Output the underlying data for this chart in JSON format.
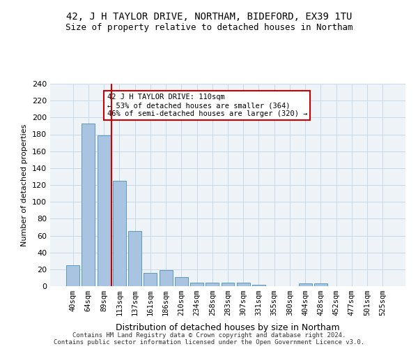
{
  "title": "42, J H TAYLOR DRIVE, NORTHAM, BIDEFORD, EX39 1TU",
  "subtitle": "Size of property relative to detached houses in Northam",
  "xlabel": "Distribution of detached houses by size in Northam",
  "ylabel": "Number of detached properties",
  "categories": [
    "40sqm",
    "64sqm",
    "89sqm",
    "113sqm",
    "137sqm",
    "161sqm",
    "186sqm",
    "210sqm",
    "234sqm",
    "258sqm",
    "283sqm",
    "307sqm",
    "331sqm",
    "355sqm",
    "380sqm",
    "404sqm",
    "428sqm",
    "452sqm",
    "477sqm",
    "501sqm",
    "525sqm"
  ],
  "values": [
    25,
    193,
    179,
    125,
    65,
    16,
    19,
    11,
    4,
    4,
    4,
    4,
    2,
    0,
    0,
    3,
    3,
    0,
    0,
    0,
    0
  ],
  "bar_color": "#a8c4e0",
  "bar_edge_color": "#5a9abf",
  "vline_x": 2.5,
  "vline_color": "#cc0000",
  "annotation_text": "42 J H TAYLOR DRIVE: 110sqm\n← 53% of detached houses are smaller (364)\n46% of semi-detached houses are larger (320) →",
  "annotation_box_color": "#ffffff",
  "annotation_box_edge": "#cc0000",
  "grid_color": "#c8d8e8",
  "background_color": "#eef3f8",
  "footer_text": "Contains HM Land Registry data © Crown copyright and database right 2024.\nContains public sector information licensed under the Open Government Licence v3.0.",
  "ylim": [
    0,
    240
  ],
  "yticks": [
    0,
    20,
    40,
    60,
    80,
    100,
    120,
    140,
    160,
    180,
    200,
    220,
    240
  ]
}
